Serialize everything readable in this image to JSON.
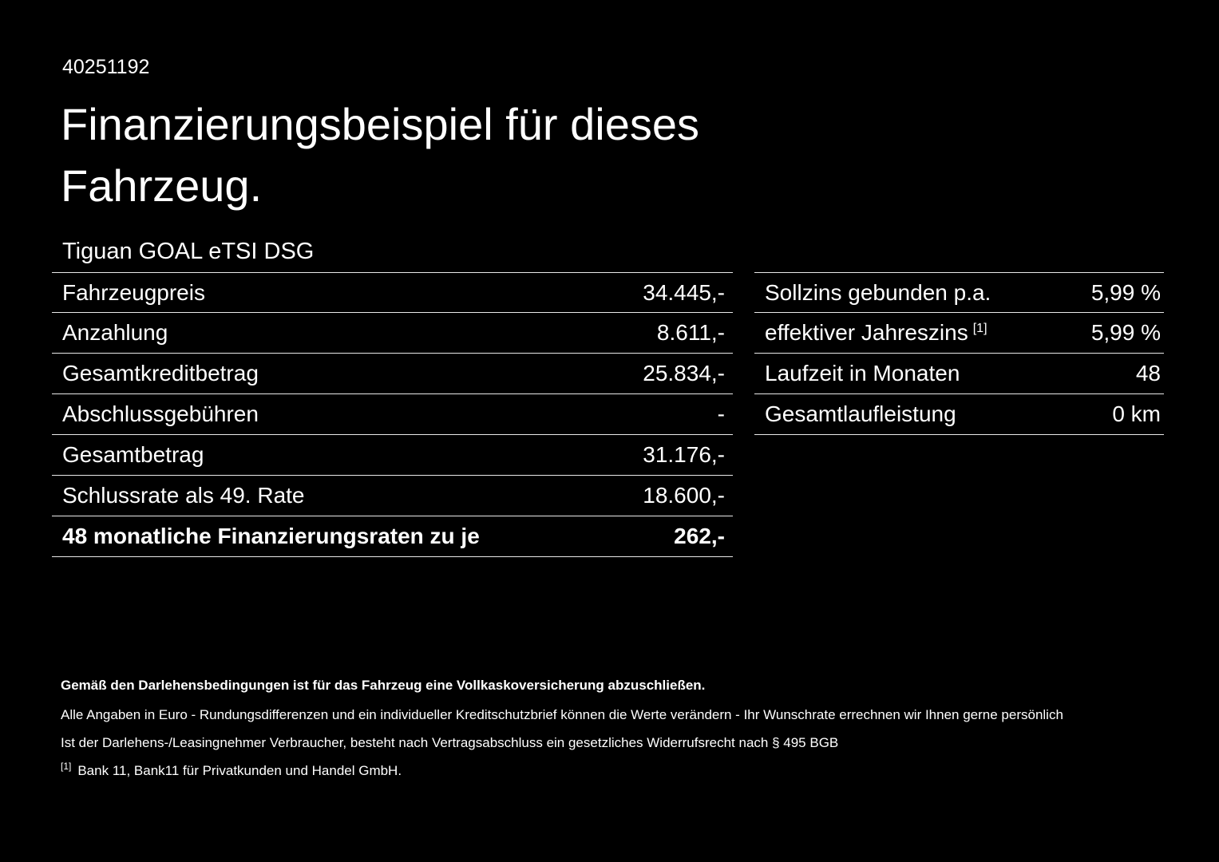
{
  "page": {
    "id": "40251192",
    "title_line1": "Finanzierungsbeispiel für dieses",
    "title_line2": "Fahrzeug.",
    "vehicle": "Tiguan GOAL eTSI DSG"
  },
  "colors": {
    "background": "#000000",
    "text": "#ffffff",
    "divider": "#e9e9e9"
  },
  "finance_table": {
    "rows": [
      {
        "label": "Fahrzeugpreis",
        "value": "34.445,-"
      },
      {
        "label": "Anzahlung",
        "value": "8.611,-"
      },
      {
        "label": "Gesamtkreditbetrag",
        "value": "25.834,-"
      },
      {
        "label": "Abschlussgebühren",
        "value": "-"
      },
      {
        "label": "Gesamtbetrag",
        "value": "31.176,-"
      },
      {
        "label": "Schlussrate als 49. Rate",
        "value": "18.600,-"
      },
      {
        "label": "48 monatliche Finanzierungsraten zu je",
        "value": "262,-"
      }
    ]
  },
  "terms_table": {
    "rows": [
      {
        "label": "Sollzins gebunden p.a.",
        "value": "5,99 %"
      },
      {
        "label": "effektiver Jahreszins",
        "sup": "[1]",
        "value": "5,99 %"
      },
      {
        "label": "Laufzeit in Monaten",
        "value": "48"
      },
      {
        "label": "Gesamtlaufleistung",
        "value": "0 km"
      }
    ]
  },
  "footnotes": {
    "bold_line": "Gemäß den Darlehensbedingungen ist für das Fahrzeug eine Vollkaskoversicherung abzuschließen.",
    "line2": "Alle Angaben in Euro - Rundungsdifferenzen und ein individueller Kreditschutzbrief können die Werte verändern - Ihr Wunschrate errechnen wir Ihnen gerne persönlich",
    "line3": "Ist der Darlehens-/Leasingnehmer Verbraucher, besteht nach Vertragsabschluss ein gesetzliches Widerrufsrecht nach § 495 BGB",
    "ref_marker": "[1]",
    "ref_text": "Bank 11, Bank11 für Privatkunden und Handel GmbH."
  }
}
